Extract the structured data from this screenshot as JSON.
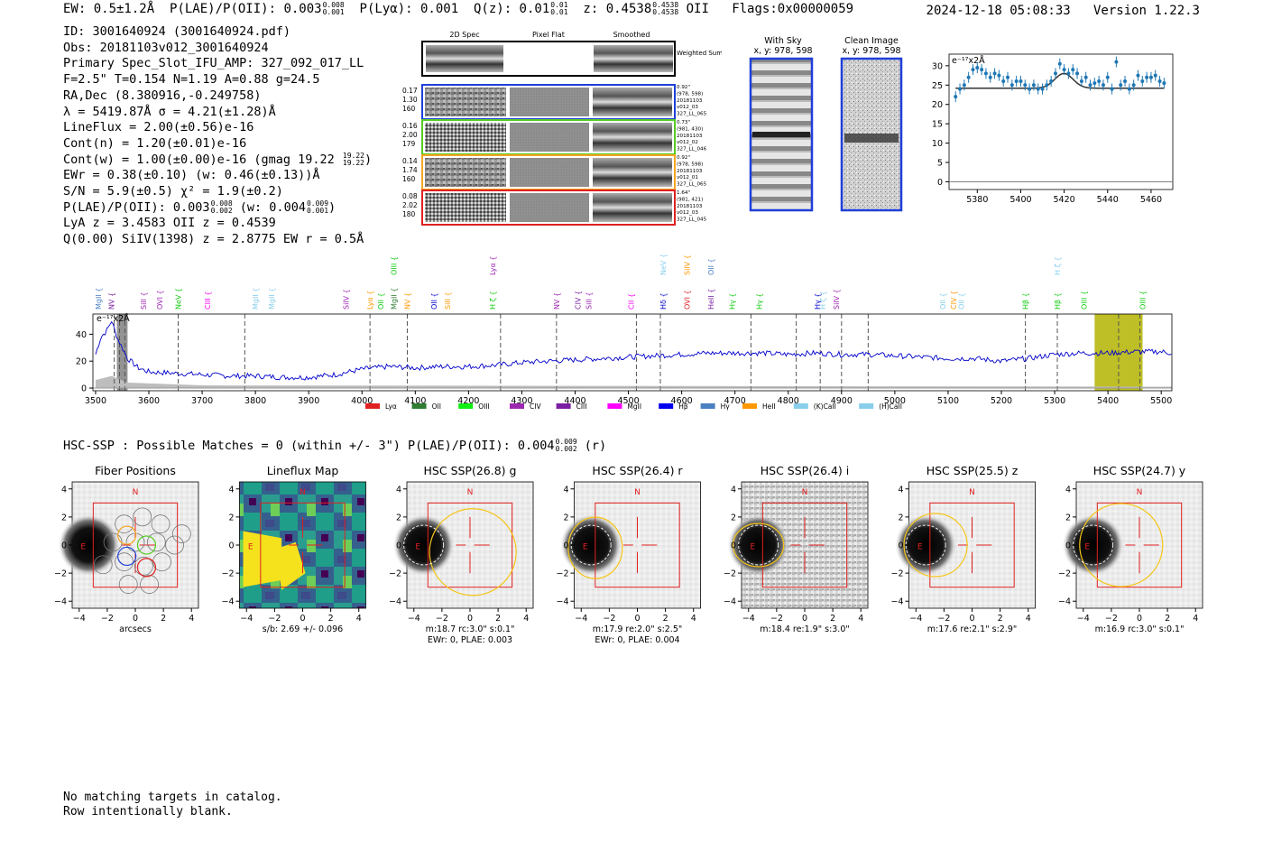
{
  "header": {
    "ew": "EW: 0.5±1.2Å",
    "plae_label": "P(LAE)/P(OII): 0.003",
    "plae_hi": "0.008",
    "plae_lo": "0.001",
    "plya": "P(Lyα): 0.001",
    "qz_label": "Q(z): 0.01",
    "qz_hi": "0.01",
    "qz_lo": "0.01",
    "z_label": "z: 0.4538",
    "z_hi": "0.4538",
    "z_lo": "0.4538",
    "z_line": "OII",
    "flags": "Flags:0x00000059",
    "timestamp": "2024-12-18 05:08:33",
    "version": "Version 1.22.3"
  },
  "info": {
    "id": "ID: 3001640924 (3001640924.pdf)",
    "obs": "Obs: 20181103v012_3001640924",
    "primary": "Primary Spec_Slot_IFU_AMP: 327_092_017_LL",
    "fwhm": "F=2.5\"  T=0.154  N=1.19  A=0.88  g=24.5",
    "radec": "RA,Dec (8.380916,-0.249758)",
    "lambda": "λ = 5419.87Å  σ = 4.21(±1.28)Å",
    "lineflux": "LineFlux = 2.00(±0.56)e-16",
    "contn": "Cont(n) = 1.20(±0.01)e-16",
    "contw_label": "Cont(w) = 1.00(±0.00)e-16 (gmag 19.22",
    "contw_hi": "19.22",
    "contw_lo": "19.22",
    "ewr": "EWr = 0.38(±0.10) (w: 0.46(±0.13))Å",
    "sn": "S/N = 5.9(±0.5)  χ² = 1.9(±0.2)",
    "plae2_label": "P(LAE)/P(OII): 0.003",
    "plae2_hi": "0.008",
    "plae2_lo": "0.002",
    "plae2_w": "(w: 0.004",
    "plae2_w_hi": "0.009",
    "plae2_w_lo": "0.001",
    "lya": "LyA z = 3.4583  OII z = 0.4539",
    "q": "Q(0.00) SiIV(1398) z = 2.8775  EW r = 0.5Å"
  },
  "spec2d": {
    "columns": [
      "2D Spec",
      "Pixel Flat",
      "Smoothed"
    ],
    "weighted_label": "Weighted Sum",
    "rows": [
      {
        "left": [
          "0.17",
          "1.30",
          "160"
        ],
        "right": [
          "0.92\"",
          "(978, 598)",
          "20181103",
          "v012_03",
          "327_LL_065"
        ],
        "color": "#1f3fd8"
      },
      {
        "left": [
          "0.16",
          "2.00",
          "179"
        ],
        "right": [
          "0.73\"",
          "(981, 430)",
          "20181103",
          "v012_02",
          "327_LL_046"
        ],
        "color": "#55cc22"
      },
      {
        "left": [
          "0.14",
          "1.74",
          "160"
        ],
        "right": [
          "0.92\"",
          "(978, 598)",
          "20181103",
          "v012_01",
          "327_LL_065"
        ],
        "color": "#f5a623"
      },
      {
        "left": [
          "0.08",
          "2.02",
          "180"
        ],
        "right": [
          "1.64\"",
          "(981, 421)",
          "20181103",
          "v012_03",
          "327_LL_045"
        ],
        "color": "#e02020"
      }
    ]
  },
  "cutouts": {
    "with_sky": {
      "title": "With Sky",
      "coords": "x, y: 978, 598"
    },
    "clean": {
      "title": "Clean Image",
      "coords": "x, y: 978, 598"
    }
  },
  "chart_data": [
    {
      "type": "scatter",
      "title": "",
      "ylabel_note": "e⁻¹⁷x2Å",
      "xlim": [
        5367,
        5470
      ],
      "ylim": [
        -2,
        33
      ],
      "xticks": [
        5380,
        5400,
        5420,
        5440,
        5460
      ],
      "yticks": [
        0,
        5,
        10,
        15,
        20,
        25,
        30
      ],
      "x": [
        5370,
        5372,
        5374,
        5376,
        5378,
        5380,
        5382,
        5384,
        5386,
        5388,
        5390,
        5392,
        5394,
        5396,
        5398,
        5400,
        5402,
        5404,
        5406,
        5408,
        5410,
        5412,
        5414,
        5416,
        5418,
        5420,
        5422,
        5424,
        5426,
        5428,
        5430,
        5432,
        5434,
        5436,
        5438,
        5440,
        5442,
        5444,
        5446,
        5448,
        5450,
        5452,
        5454,
        5456,
        5458,
        5460,
        5462,
        5464,
        5466
      ],
      "y": [
        22,
        24,
        25,
        27,
        29,
        29.5,
        29,
        28,
        27,
        28,
        27.5,
        26,
        27,
        25,
        26,
        26,
        25,
        24,
        25,
        24,
        24,
        25,
        26,
        28,
        30.5,
        29,
        28,
        29,
        28,
        26,
        27,
        25,
        25.5,
        26,
        25,
        27,
        24,
        31,
        25,
        26,
        24,
        25,
        27.5,
        26,
        27,
        27,
        27.5,
        26,
        25.5
      ],
      "fit": {
        "baseline": 24.2,
        "peak": 5419.87,
        "amplitude": 3.8,
        "sigma": 4.21
      }
    },
    {
      "type": "line",
      "ylabel_note": "e⁻¹⁷x2Å",
      "xlim": [
        3495,
        5520
      ],
      "ylim": [
        -2,
        55
      ],
      "xticks": [
        3500,
        3600,
        3700,
        3800,
        3900,
        4000,
        4100,
        4200,
        4300,
        4400,
        4500,
        4600,
        4700,
        4800,
        4900,
        5000,
        5100,
        5200,
        5300,
        5400,
        5500
      ],
      "yticks": [
        0,
        20,
        40
      ],
      "x": [
        3500,
        3510,
        3520,
        3530,
        3540,
        3550,
        3560,
        3580,
        3600,
        3650,
        3700,
        3750,
        3800,
        3850,
        3900,
        3950,
        4000,
        4050,
        4100,
        4150,
        4200,
        4250,
        4300,
        4350,
        4400,
        4450,
        4500,
        4550,
        4600,
        4650,
        4700,
        4750,
        4800,
        4850,
        4900,
        4950,
        5000,
        5050,
        5100,
        5150,
        5200,
        5250,
        5300,
        5350,
        5400,
        5450,
        5500,
        5520
      ],
      "y": [
        25,
        38,
        42,
        50,
        38,
        30,
        22,
        15,
        12,
        11,
        10,
        9,
        9,
        8,
        8,
        10,
        14,
        16,
        15,
        16,
        16,
        17,
        19,
        20,
        21,
        22,
        23,
        24,
        25,
        26,
        26,
        26,
        25,
        26,
        25,
        25,
        24,
        23,
        22,
        22,
        20,
        22,
        25,
        26,
        26,
        27,
        27,
        26
      ],
      "shaded_regions": [
        {
          "from": 3540,
          "to": 3560,
          "color": "#808080"
        },
        {
          "from": 5375,
          "to": 5465,
          "color": "#b3b300"
        }
      ],
      "dashed_lines": [
        3535,
        3545,
        3555,
        3655,
        3780,
        4015,
        4085,
        4260,
        4365,
        4515,
        4560,
        4730,
        4815,
        4860,
        4900,
        4950,
        5245,
        5305,
        5420,
        5460
      ],
      "line_markers": [
        {
          "name": "MgII",
          "x": 3505,
          "color": "#4a7fc1",
          "row": 1
        },
        {
          "name": "NV",
          "x": 3530,
          "color": "#7b1fa2",
          "row": 1
        },
        {
          "name": "SiII",
          "x": 3590,
          "color": "#9c27b0",
          "row": 1
        },
        {
          "name": "OVI",
          "x": 3620,
          "color": "#9c27b0",
          "row": 1
        },
        {
          "name": "NeV",
          "x": 3655,
          "color": "#11cc11",
          "row": 1
        },
        {
          "name": "CIII",
          "x": 3710,
          "color": "#ff00ff",
          "row": 1
        },
        {
          "name": "MgII",
          "x": 3800,
          "color": "#87ceeb",
          "row": 1
        },
        {
          "name": "MgII",
          "x": 3830,
          "color": "#87ceeb",
          "row": 1
        },
        {
          "name": "SiIV",
          "x": 3970,
          "color": "#9c27b0",
          "row": 1
        },
        {
          "name": "Lyα",
          "x": 4015,
          "color": "#ff9800",
          "row": 1
        },
        {
          "name": "OII",
          "x": 4035,
          "color": "#11cc11",
          "row": 1
        },
        {
          "name": "MgII",
          "x": 4060,
          "color": "#2e7d32",
          "row": 1
        },
        {
          "name": "OIII",
          "x": 4060,
          "color": "#11cc11",
          "row": 0
        },
        {
          "name": "NV",
          "x": 4085,
          "color": "#ff9800",
          "row": 1
        },
        {
          "name": "OII",
          "x": 4135,
          "color": "#0000cc",
          "row": 1
        },
        {
          "name": "SiII",
          "x": 4160,
          "color": "#ff9800",
          "row": 1
        },
        {
          "name": "Lyα",
          "x": 4245,
          "color": "#9c27b0",
          "row": 0
        },
        {
          "name": "H ζ",
          "x": 4245,
          "color": "#11cc11",
          "row": 1
        },
        {
          "name": "NV",
          "x": 4365,
          "color": "#9c27b0",
          "row": 1
        },
        {
          "name": "CIV",
          "x": 4405,
          "color": "#7b1fa2",
          "row": 1
        },
        {
          "name": "SiII",
          "x": 4425,
          "color": "#9c27b0",
          "row": 1
        },
        {
          "name": "CII",
          "x": 4505,
          "color": "#ff00ff",
          "row": 1
        },
        {
          "name": "NeV",
          "x": 4565,
          "color": "#87ceeb",
          "row": 0
        },
        {
          "name": "Hδ",
          "x": 4565,
          "color": "#0000cc",
          "row": 1
        },
        {
          "name": "SiIV",
          "x": 4610,
          "color": "#ff9800",
          "row": 0
        },
        {
          "name": "OVI",
          "x": 4610,
          "color": "#e02020",
          "row": 1
        },
        {
          "name": "OII",
          "x": 4655,
          "color": "#4a7fc1",
          "row": 0
        },
        {
          "name": "HeII",
          "x": 4655,
          "color": "#7b1fa2",
          "row": 1
        },
        {
          "name": "Hγ",
          "x": 4695,
          "color": "#11cc11",
          "row": 1
        },
        {
          "name": "Hγ",
          "x": 4745,
          "color": "#11cc11",
          "row": 1
        },
        {
          "name": "Hγ",
          "x": 4855,
          "color": "#0000cc",
          "row": 1
        },
        {
          "name": "H ζ",
          "x": 4865,
          "color": "#87ceeb",
          "row": 1
        },
        {
          "name": "SiIV",
          "x": 4890,
          "color": "#9c27b0",
          "row": 1
        },
        {
          "name": "OII",
          "x": 5090,
          "color": "#87ceeb",
          "row": 1
        },
        {
          "name": "CIV",
          "x": 5110,
          "color": "#ff9800",
          "row": 1
        },
        {
          "name": "OII",
          "x": 5125,
          "color": "#87ceeb",
          "row": 1
        },
        {
          "name": "Hβ",
          "x": 5245,
          "color": "#11cc11",
          "row": 1
        },
        {
          "name": "H ζ",
          "x": 5305,
          "color": "#87ceeb",
          "row": 0
        },
        {
          "name": "Hβ",
          "x": 5305,
          "color": "#11cc11",
          "row": 1
        },
        {
          "name": "OIII",
          "x": 5355,
          "color": "#11cc11",
          "row": 1
        },
        {
          "name": "OIII",
          "x": 5465,
          "color": "#11cc11",
          "row": 1
        }
      ],
      "legend": [
        {
          "label": "Lyα",
          "color": "#e02020"
        },
        {
          "label": "OII",
          "color": "#2e7d32"
        },
        {
          "label": "OIII",
          "color": "#11ee11"
        },
        {
          "label": "CIV",
          "color": "#9c27b0"
        },
        {
          "label": "CIII",
          "color": "#7b1fa2"
        },
        {
          "label": "MgII",
          "color": "#ff00ff"
        },
        {
          "label": "Hβ",
          "color": "#0000ee"
        },
        {
          "label": "Hγ",
          "color": "#4a7fc1"
        },
        {
          "label": "HeII",
          "color": "#ff9800"
        },
        {
          "label": "(K)CaII",
          "color": "#87ceeb"
        },
        {
          "label": "(H)CaII",
          "color": "#87ceeb"
        }
      ]
    }
  ],
  "hsc": {
    "header_label": "HSC-SSP : Possible Matches = 0 (within +/- 3\")  P(LAE)/P(OII): 0.004",
    "header_hi": "0.009",
    "header_lo": "0.002",
    "header_band": "(r)",
    "axis_ticks": [
      "−4",
      "−2",
      "0",
      "2",
      "4"
    ],
    "north": "N",
    "east": "E",
    "panels": [
      {
        "title": "Fiber Positions",
        "caption1": "arcsecs",
        "caption2": ""
      },
      {
        "title": "Lineflux Map",
        "caption1": "s/b: 2.69 +/- 0.096",
        "caption2": ""
      },
      {
        "title": "HSC SSP(26.8) g",
        "caption1": "m:18.7 rc:3.0\"  s:0.1\"",
        "caption2": "EWr: 0, PLAE: 0.003"
      },
      {
        "title": "HSC SSP(26.4) r",
        "caption1": "m:17.9  re:2.0\"  s:2.5\"",
        "caption2": "EWr: 0, PLAE: 0.004"
      },
      {
        "title": "HSC SSP(26.4) i",
        "caption1": "m:18.4  re:1.9\"  s:3.0\"",
        "caption2": ""
      },
      {
        "title": "HSC SSP(25.5) z",
        "caption1": "m:17.6  re:2.1\"  s:2.9\"",
        "caption2": ""
      },
      {
        "title": "HSC SSP(24.7) y",
        "caption1": "m:16.9 rc:3.0\"  s:0.1\"",
        "caption2": ""
      }
    ]
  },
  "footer": {
    "line1": "No matching targets in catalog.",
    "line2": "Row intentionally blank."
  }
}
